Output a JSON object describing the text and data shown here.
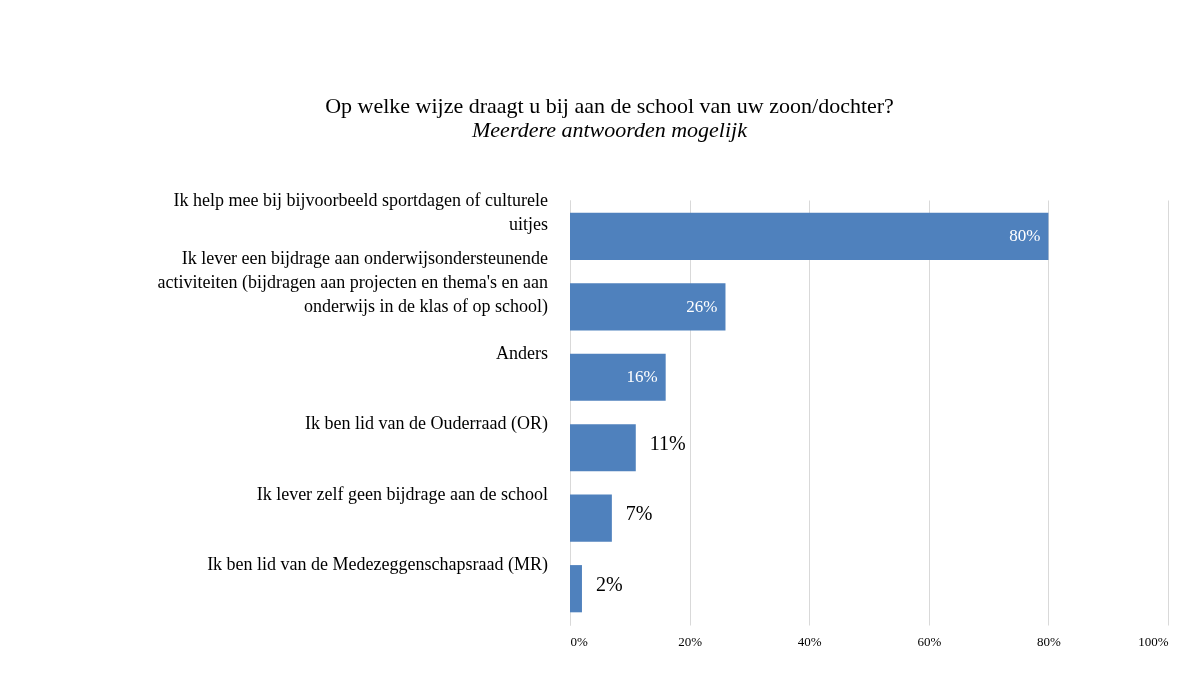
{
  "chart_data": {
    "type": "bar",
    "orientation": "horizontal",
    "title": "Op welke wijze draagt u bij aan de school van uw zoon/dochter?",
    "subtitle": "Meerdere antwoorden mogelijk",
    "categories": [
      "Ik help mee bij bijvoorbeeld sportdagen of culturele uitjes",
      "Ik lever een bijdrage aan onderwijsondersteunende activiteiten (bijdragen aan projecten en thema's en aan onderwijs in de klas of op school)",
      "Anders",
      "Ik ben lid van de Ouderraad (OR)",
      "Ik lever zelf geen bijdrage aan de school",
      "Ik ben lid van de Medezeggenschapsraad (MR)"
    ],
    "values": [
      80,
      26,
      16,
      11,
      7,
      2
    ],
    "value_labels": [
      "80%",
      "26%",
      "16%",
      "11%",
      "7%",
      "2%"
    ],
    "color": "#4f81bd",
    "xlim": [
      0,
      100
    ],
    "xticks": [
      {
        "value": 0,
        "label": "0%"
      },
      {
        "value": 20,
        "label": "20%"
      },
      {
        "value": 40,
        "label": "40%"
      },
      {
        "value": 60,
        "label": "60%"
      },
      {
        "value": 80,
        "label": "80%"
      },
      {
        "value": 100,
        "label": "100%"
      }
    ],
    "grid": "x",
    "legend": false
  }
}
